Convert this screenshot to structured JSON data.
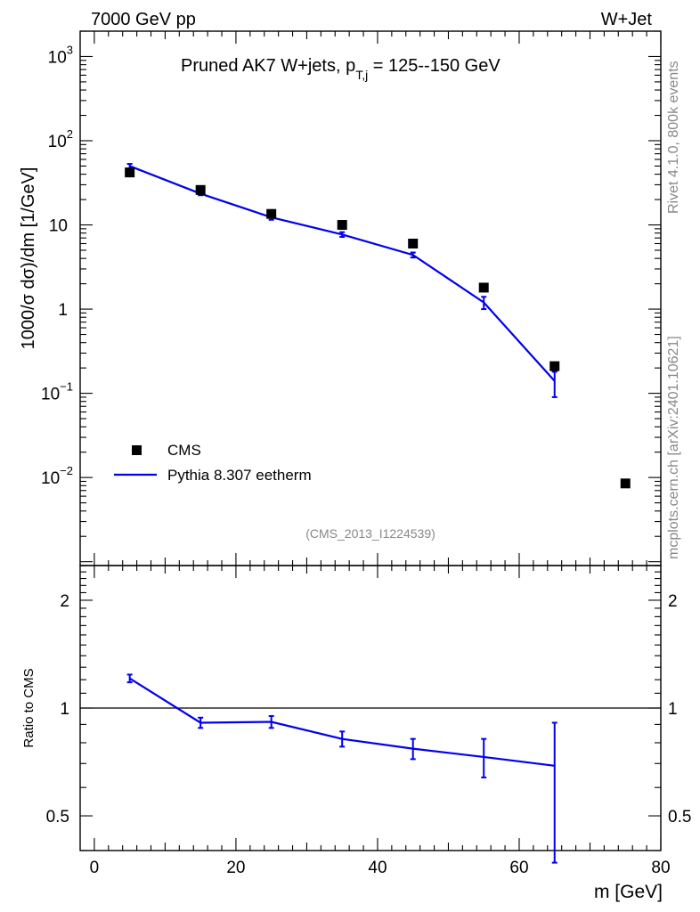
{
  "header": {
    "left_label": "7000 GeV pp",
    "right_label": "W+Jet"
  },
  "side": {
    "rivet_label": "Rivet 4.1.0,  800k events",
    "mcplots_label": "mcplots.cern.ch [arXiv:2401.10621]"
  },
  "colors": {
    "mc": "#0000ee",
    "data": "#000000",
    "watermark": "#888888"
  },
  "chart_data": [
    {
      "type": "scatter",
      "panel": "main",
      "title_main": "Pruned AK7 W+jets, p",
      "title_sub": "T,j",
      "title_tail": " = 125--150 GeV",
      "watermark": "(CMS_2013_I1224539)",
      "ylabel": "1000/σ  dσ)/dm [1/GeV]",
      "yscale": "log",
      "ylim": [
        0.0009,
        2000
      ],
      "xlim": [
        -2,
        80
      ],
      "y_ticks": [
        {
          "v": 1000,
          "base": "10",
          "exp": "3"
        },
        {
          "v": 100,
          "base": "10",
          "exp": "2"
        },
        {
          "v": 10,
          "base": "10",
          "exp": ""
        },
        {
          "v": 1,
          "base": "1",
          "exp": ""
        },
        {
          "v": 0.1,
          "base": "10",
          "exp": "−1"
        },
        {
          "v": 0.01,
          "base": "10",
          "exp": "−2"
        }
      ],
      "legend": [
        {
          "label": "CMS",
          "kind": "marker"
        },
        {
          "label": "Pythia 8.307 eetherm",
          "kind": "line"
        }
      ],
      "series": [
        {
          "name": "CMS",
          "x": [
            5,
            15,
            25,
            35,
            45,
            55,
            65,
            75
          ],
          "y": [
            42,
            26,
            13.5,
            10,
            6.0,
            1.8,
            0.21,
            0.0085
          ]
        },
        {
          "name": "Pythia 8.307 eetherm",
          "x": [
            5,
            15,
            25,
            35,
            45,
            55,
            65
          ],
          "y": [
            50,
            23.5,
            12.3,
            7.7,
            4.4,
            1.2,
            0.14
          ],
          "err_lo": [
            47,
            22.5,
            11.5,
            7.2,
            4.1,
            1.0,
            0.09
          ],
          "err_hi": [
            53,
            24.5,
            13.0,
            8.2,
            4.7,
            1.4,
            0.18
          ]
        }
      ]
    },
    {
      "type": "line",
      "panel": "ratio",
      "ylabel": "Ratio to CMS",
      "xlabel": "m [GeV]",
      "yscale": "log",
      "ylim": [
        0.4,
        2.5
      ],
      "xlim": [
        -2,
        80
      ],
      "y_ticks": [
        {
          "v": 2,
          "label": "2"
        },
        {
          "v": 1,
          "label": "1"
        },
        {
          "v": 0.5,
          "label": "0.5"
        }
      ],
      "x_ticks": [
        {
          "v": 0,
          "label": "0"
        },
        {
          "v": 20,
          "label": "20"
        },
        {
          "v": 40,
          "label": "40"
        },
        {
          "v": 60,
          "label": "60"
        },
        {
          "v": 80,
          "label": "80"
        }
      ],
      "reference": 1,
      "series": [
        {
          "name": "Pythia 8.307 eetherm / CMS",
          "x": [
            5,
            15,
            25,
            35,
            45,
            55,
            65
          ],
          "y": [
            1.21,
            0.91,
            0.915,
            0.82,
            0.77,
            0.73,
            0.69
          ],
          "err_lo": [
            1.18,
            0.88,
            0.88,
            0.78,
            0.72,
            0.64,
            0.37
          ],
          "err_hi": [
            1.24,
            0.94,
            0.95,
            0.86,
            0.82,
            0.82,
            0.91
          ]
        }
      ]
    }
  ]
}
